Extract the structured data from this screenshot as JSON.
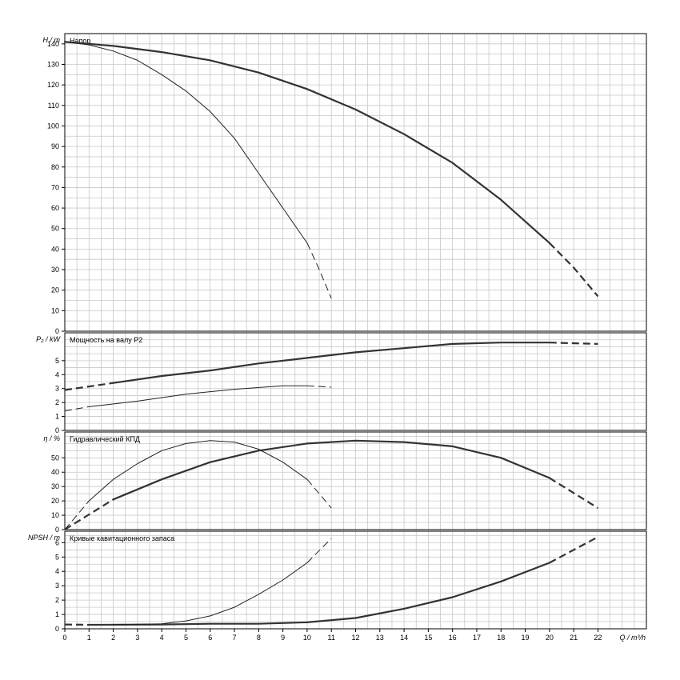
{
  "chart_data": [
    {
      "type": "line",
      "title": "Напор",
      "ylabel": "H / m",
      "xlim": [
        0,
        24
      ],
      "ylim": [
        0,
        145
      ],
      "yticks": [
        0,
        10,
        20,
        30,
        40,
        50,
        60,
        70,
        80,
        90,
        100,
        110,
        120,
        130,
        140
      ],
      "grid": true,
      "series": [
        {
          "values_solid": [
            [
              0,
              141
            ],
            [
              2,
              139
            ],
            [
              4,
              136
            ],
            [
              6,
              132
            ],
            [
              8,
              126
            ],
            [
              10,
              118
            ],
            [
              12,
              108
            ],
            [
              14,
              96
            ],
            [
              16,
              82
            ],
            [
              18,
              64
            ],
            [
              20,
              43
            ]
          ],
          "values_dashed": [
            [
              20,
              43
            ],
            [
              21,
              31
            ],
            [
              22,
              17
            ]
          ],
          "weight": "bold"
        },
        {
          "values_solid": [
            [
              0,
              141
            ],
            [
              1,
              139.5
            ],
            [
              2,
              136.5
            ],
            [
              3,
              132
            ],
            [
              4,
              125
            ],
            [
              5,
              117
            ],
            [
              6,
              107
            ],
            [
              7,
              94
            ],
            [
              8,
              77
            ],
            [
              9,
              60
            ],
            [
              10,
              43
            ]
          ],
          "values_dashed": [
            [
              10,
              43
            ],
            [
              10.5,
              30
            ],
            [
              11,
              16
            ]
          ],
          "weight": "thin"
        }
      ]
    },
    {
      "type": "line",
      "title": "Мощность на валу P2",
      "ylabel": "P₂ / kW",
      "xlim": [
        0,
        24
      ],
      "ylim": [
        0,
        7
      ],
      "yticks": [
        0,
        1,
        2,
        3,
        4,
        5
      ],
      "grid": true,
      "series": [
        {
          "values_dashed_start": [
            [
              0,
              2.9
            ],
            [
              2,
              3.4
            ]
          ],
          "values_solid": [
            [
              2,
              3.4
            ],
            [
              4,
              3.9
            ],
            [
              6,
              4.3
            ],
            [
              8,
              4.8
            ],
            [
              10,
              5.2
            ],
            [
              12,
              5.6
            ],
            [
              14,
              5.9
            ],
            [
              16,
              6.2
            ],
            [
              18,
              6.3
            ],
            [
              20,
              6.3
            ]
          ],
          "values_dashed": [
            [
              20,
              6.3
            ],
            [
              22,
              6.2
            ]
          ],
          "weight": "bold"
        },
        {
          "values_dashed_start": [
            [
              0,
              1.4
            ],
            [
              1,
              1.7
            ]
          ],
          "values_solid": [
            [
              1,
              1.7
            ],
            [
              3,
              2.1
            ],
            [
              5,
              2.6
            ],
            [
              7,
              2.95
            ],
            [
              9,
              3.2
            ],
            [
              10,
              3.2
            ]
          ],
          "values_dashed": [
            [
              10,
              3.2
            ],
            [
              11,
              3.1
            ]
          ],
          "weight": "thin"
        }
      ]
    },
    {
      "type": "line",
      "title": "Гидравлический КПД",
      "ylabel": "η / %",
      "xlim": [
        0,
        24
      ],
      "ylim": [
        0,
        68
      ],
      "yticks": [
        0,
        10,
        20,
        30,
        40,
        50
      ],
      "grid": true,
      "series": [
        {
          "values_dashed_start": [
            [
              0,
              0
            ],
            [
              2,
              21
            ]
          ],
          "values_solid": [
            [
              2,
              21
            ],
            [
              4,
              35
            ],
            [
              6,
              47
            ],
            [
              8,
              55
            ],
            [
              10,
              60
            ],
            [
              12,
              62
            ],
            [
              14,
              61
            ],
            [
              16,
              58
            ],
            [
              18,
              50
            ],
            [
              20,
              36
            ]
          ],
          "values_dashed": [
            [
              20,
              36
            ],
            [
              22,
              15
            ]
          ],
          "weight": "bold"
        },
        {
          "values_dashed_start": [
            [
              0,
              0
            ],
            [
              1,
              20
            ]
          ],
          "values_solid": [
            [
              1,
              20
            ],
            [
              2,
              35
            ],
            [
              3,
              46
            ],
            [
              4,
              55
            ],
            [
              5,
              60
            ],
            [
              6,
              62
            ],
            [
              7,
              61
            ],
            [
              8,
              56
            ],
            [
              9,
              47
            ],
            [
              10,
              35
            ]
          ],
          "values_dashed": [
            [
              10,
              35
            ],
            [
              11,
              15
            ]
          ],
          "weight": "thin"
        }
      ]
    },
    {
      "type": "line",
      "title": "Кривые кавитационного запаса",
      "ylabel": "NPSH / m",
      "xlabel": "Q / m³/h",
      "xlim": [
        0,
        24
      ],
      "ylim": [
        0,
        6.8
      ],
      "xticks": [
        0,
        1,
        2,
        3,
        4,
        5,
        6,
        7,
        8,
        9,
        10,
        11,
        12,
        13,
        14,
        15,
        16,
        17,
        18,
        19,
        20,
        21,
        22
      ],
      "yticks": [
        0,
        1,
        2,
        3,
        4,
        5,
        6
      ],
      "grid": true,
      "series": [
        {
          "values_dashed_start": [
            [
              0,
              0.3
            ],
            [
              1,
              0.28
            ]
          ],
          "values_solid": [
            [
              1,
              0.28
            ],
            [
              4,
              0.3
            ],
            [
              6,
              0.35
            ],
            [
              8,
              0.35
            ],
            [
              10,
              0.45
            ],
            [
              12,
              0.75
            ],
            [
              14,
              1.4
            ],
            [
              16,
              2.2
            ],
            [
              18,
              3.3
            ],
            [
              20,
              4.6
            ]
          ],
          "values_dashed": [
            [
              20,
              4.6
            ],
            [
              22,
              6.4
            ]
          ],
          "weight": "bold"
        },
        {
          "values_solid": [
            [
              2,
              0.28
            ],
            [
              4,
              0.35
            ],
            [
              5,
              0.55
            ],
            [
              6,
              0.9
            ],
            [
              7,
              1.5
            ],
            [
              8,
              2.4
            ],
            [
              9,
              3.4
            ],
            [
              10,
              4.6
            ]
          ],
          "values_dashed": [
            [
              10,
              4.6
            ],
            [
              11,
              6.3
            ]
          ],
          "weight": "thin"
        }
      ]
    }
  ]
}
